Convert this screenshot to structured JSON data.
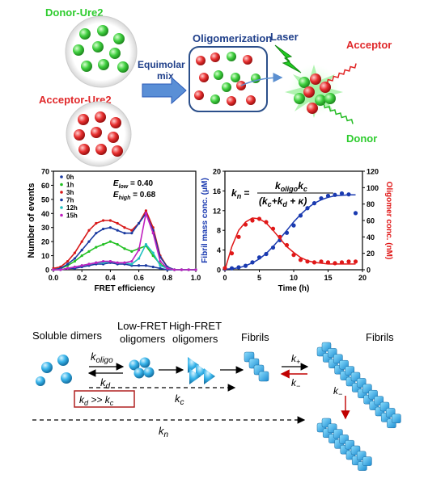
{
  "top": {
    "donor_label": "Donor-Ure2",
    "acceptor_label": "Acceptor-Ure2",
    "mix_line1": "Equimolar",
    "mix_line2": "mix",
    "oligomerization": "Oligomerization",
    "laser": "Laser",
    "acceptor": "Acceptor",
    "donor": "Donor",
    "colors": {
      "donor": "#2ecc2e",
      "acceptor": "#e0282a",
      "blue": "#2b5bb8",
      "title_blue": "#1f3f8a"
    }
  },
  "chart_data": [
    {
      "type": "line",
      "xlabel": "FRET efficiency",
      "ylabel": "Number of events",
      "xlim": [
        0.0,
        1.0
      ],
      "ylim": [
        0,
        70
      ],
      "xticks": [
        "0.0",
        "0.2",
        "0.4",
        "0.6",
        "0.8",
        "1.0"
      ],
      "yticks": [
        "0",
        "10",
        "20",
        "30",
        "40",
        "50",
        "60",
        "70"
      ],
      "annotations": [
        "E_low = 0.40",
        "E_high = 0.68"
      ],
      "legend_position": "top-left",
      "x": [
        0.0,
        0.05,
        0.1,
        0.15,
        0.2,
        0.25,
        0.3,
        0.35,
        0.4,
        0.45,
        0.5,
        0.55,
        0.6,
        0.65,
        0.7,
        0.75,
        0.8,
        0.85,
        0.9,
        0.95,
        1.0
      ],
      "series": [
        {
          "name": "0h",
          "color": "#1a3aa0",
          "values": [
            0,
            0,
            1,
            1,
            2,
            3,
            4,
            4,
            5,
            4,
            4,
            3,
            3,
            3,
            2,
            1,
            0,
            0,
            0,
            0,
            0
          ]
        },
        {
          "name": "1h",
          "color": "#22c022",
          "values": [
            0,
            1,
            3,
            6,
            10,
            13,
            16,
            18,
            20,
            18,
            15,
            13,
            15,
            17,
            10,
            4,
            1,
            0,
            0,
            0,
            0
          ]
        },
        {
          "name": "3h",
          "color": "#d81818",
          "values": [
            1,
            2,
            6,
            12,
            20,
            28,
            33,
            35,
            35,
            33,
            30,
            28,
            33,
            42,
            30,
            10,
            2,
            0,
            0,
            0,
            0
          ]
        },
        {
          "name": "7h",
          "color": "#1a3aa0",
          "values": [
            0,
            1,
            4,
            8,
            14,
            20,
            26,
            29,
            30,
            28,
            26,
            26,
            33,
            40,
            28,
            9,
            2,
            0,
            0,
            0,
            0
          ]
        },
        {
          "name": "12h",
          "color": "#20c0c0",
          "values": [
            0,
            0,
            1,
            2,
            3,
            4,
            5,
            5,
            6,
            5,
            5,
            4,
            8,
            18,
            12,
            3,
            1,
            0,
            0,
            0,
            0
          ]
        },
        {
          "name": "15h",
          "color": "#c020c0",
          "values": [
            0,
            0,
            1,
            2,
            3,
            4,
            5,
            6,
            6,
            5,
            5,
            6,
            14,
            40,
            26,
            6,
            1,
            0,
            0,
            0,
            0
          ]
        }
      ]
    },
    {
      "type": "scatter",
      "xlabel": "Time (h)",
      "ylabel": "Fibril mass conc. (μM)",
      "ylabel_right": "Oligomer conc. (nM)",
      "xlim": [
        0,
        20
      ],
      "ylim": [
        0,
        20
      ],
      "ylim_right": [
        0,
        120
      ],
      "xticks": [
        "0",
        "5",
        "10",
        "15",
        "20"
      ],
      "yticks": [
        "0",
        "4",
        "8",
        "12",
        "16",
        "20"
      ],
      "yticks_right": [
        "0",
        "20",
        "40",
        "60",
        "80",
        "100",
        "120"
      ],
      "series": [
        {
          "name": "Fibril mass",
          "axis": "left",
          "color": "#1a3ab0",
          "x": [
            0,
            1,
            2,
            3,
            4,
            5,
            6,
            7,
            8,
            9,
            10,
            11,
            12,
            13,
            14,
            15,
            16,
            17,
            18,
            19
          ],
          "values": [
            0.2,
            0.3,
            0.5,
            0.8,
            1.5,
            2.5,
            3.2,
            4.5,
            6,
            7.5,
            9,
            11,
            12.5,
            13.5,
            14.5,
            15,
            15.2,
            15.5,
            15.3,
            11.5
          ],
          "fit": [
            0.1,
            0.2,
            0.4,
            0.8,
            1.4,
            2.2,
            3.3,
            4.7,
            6.3,
            8,
            9.7,
            11.2,
            12.5,
            13.5,
            14.2,
            14.7,
            15,
            15.1,
            15.2,
            15.2
          ]
        },
        {
          "name": "Oligomer",
          "axis": "right",
          "color": "#e01818",
          "x": [
            0,
            1,
            2,
            3,
            4,
            5,
            6,
            7,
            8,
            9,
            10,
            11,
            12,
            13,
            14,
            15,
            16,
            17,
            18,
            19
          ],
          "values": [
            2,
            20,
            40,
            55,
            60,
            62,
            58,
            50,
            40,
            30,
            18,
            12,
            10,
            9,
            10,
            9,
            8,
            9,
            10,
            10
          ],
          "fit": [
            0,
            28,
            48,
            58,
            63,
            62,
            57,
            48,
            38,
            28,
            21,
            15,
            11,
            9,
            8,
            7,
            7,
            7,
            7,
            7
          ]
        }
      ]
    }
  ],
  "formula": {
    "lhs": "k",
    "lhs_sub": "n",
    "num_k1": "k",
    "num_sub1": "oligo",
    "num_k2": "k",
    "num_sub2": "c",
    "den_prefix": "(k",
    "den_sub1": "c",
    "den_mid": "+k",
    "den_sub2": "d",
    "den_suffix": " + κ)"
  },
  "bottom": {
    "soluble_dimers": "Soluble dimers",
    "low_fret_1": "Low-FRET",
    "low_fret_2": "oligomers",
    "high_fret_1": "High-FRET",
    "high_fret_2": "oligomers",
    "fibrils_1": "Fibrils",
    "fibrils_2": "Fibrils",
    "k": "k",
    "sub_oligo": "oligo",
    "sub_d": "d",
    "sub_c": "c",
    "sub_n": "n",
    "sub_plus": "+",
    "sub_minus": "−",
    "box_kd": "k",
    "box_gt": " >> k",
    "colors": {
      "sphere": "#29a7e0",
      "box_border": "#b02020",
      "arrow_red": "#c00000"
    }
  }
}
